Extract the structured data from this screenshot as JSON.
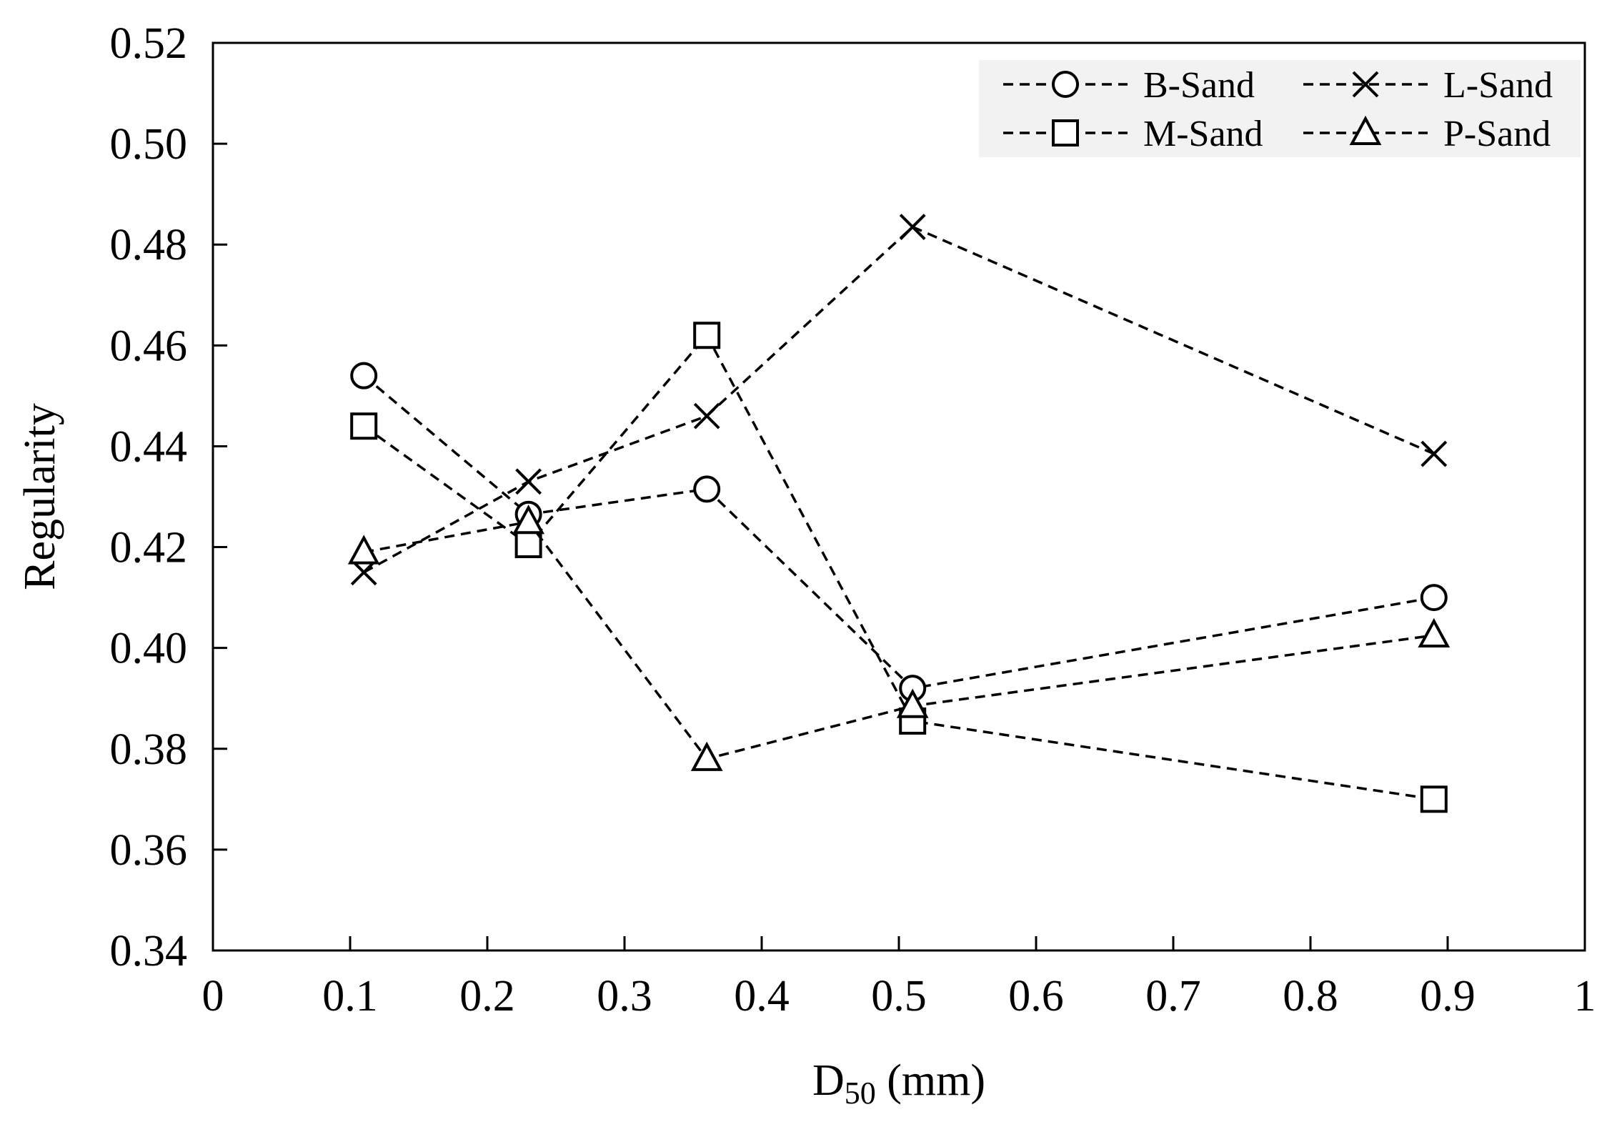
{
  "chart_data": {
    "type": "line",
    "title": "",
    "xlabel": {
      "main": "D",
      "sub": "50",
      "unit": " (mm)"
    },
    "ylabel": "Regularity",
    "xlim": [
      0,
      1
    ],
    "ylim": [
      0.34,
      0.52
    ],
    "x_ticks": [
      "0",
      "0.1",
      "0.2",
      "0.3",
      "0.4",
      "0.5",
      "0.6",
      "0.7",
      "0.8",
      "0.9",
      "1"
    ],
    "y_ticks": [
      "0.34",
      "0.36",
      "0.38",
      "0.40",
      "0.42",
      "0.44",
      "0.46",
      "0.48",
      "0.50",
      "0.52"
    ],
    "x": [
      0.11,
      0.23,
      0.36,
      0.51,
      0.89
    ],
    "grid": false,
    "legend_position": "top-right",
    "series": [
      {
        "name": "B-Sand",
        "marker": "circle",
        "values": [
          0.454,
          0.4265,
          0.4315,
          0.392,
          0.41
        ]
      },
      {
        "name": "L-Sand",
        "marker": "x",
        "values": [
          0.415,
          0.433,
          0.446,
          0.4835,
          0.4385
        ]
      },
      {
        "name": "M-Sand",
        "marker": "square",
        "values": [
          0.444,
          0.4205,
          0.462,
          0.3855,
          0.37
        ]
      },
      {
        "name": "P-Sand",
        "marker": "triangle",
        "values": [
          0.419,
          0.425,
          0.378,
          0.3885,
          0.4025
        ]
      }
    ],
    "colors": {
      "line": "#000000",
      "legend_bg": "#f2f2f2"
    }
  }
}
